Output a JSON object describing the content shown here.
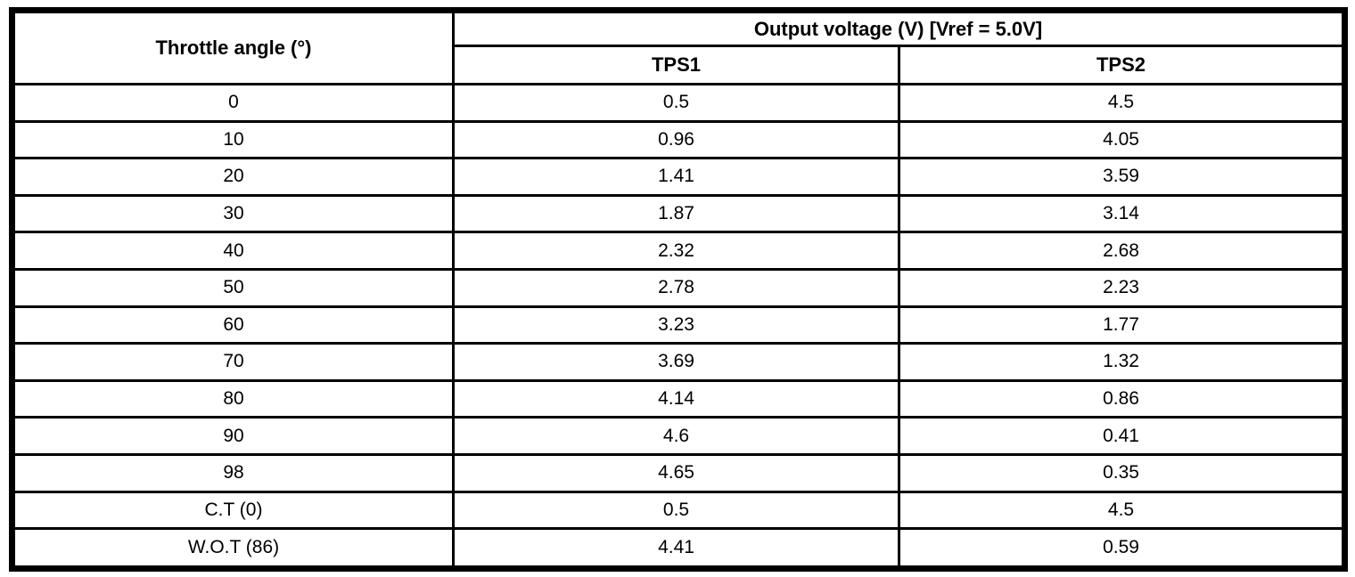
{
  "colors": {
    "background": "#ffffff",
    "border": "#000000",
    "text": "#000000"
  },
  "table": {
    "col1_header": "Throttle angle (°)",
    "group_header": "Output voltage (V) [Vref = 5.0V]",
    "sub_headers": [
      "TPS1",
      "TPS2"
    ],
    "rows": [
      [
        "0",
        "0.5",
        "4.5"
      ],
      [
        "10",
        "0.96",
        "4.05"
      ],
      [
        "20",
        "1.41",
        "3.59"
      ],
      [
        "30",
        "1.87",
        "3.14"
      ],
      [
        "40",
        "2.32",
        "2.68"
      ],
      [
        "50",
        "2.78",
        "2.23"
      ],
      [
        "60",
        "3.23",
        "1.77"
      ],
      [
        "70",
        "3.69",
        "1.32"
      ],
      [
        "80",
        "4.14",
        "0.86"
      ],
      [
        "90",
        "4.6",
        "0.41"
      ],
      [
        "98",
        "4.65",
        "0.35"
      ],
      [
        "C.T (0)",
        "0.5",
        "4.5"
      ],
      [
        "W.O.T (86)",
        "4.41",
        "0.59"
      ]
    ]
  },
  "chart_data": {
    "type": "table",
    "title": "Output voltage (V) [Vref = 5.0V]",
    "xlabel": "Throttle angle (°)",
    "categories": [
      "0",
      "10",
      "20",
      "30",
      "40",
      "50",
      "60",
      "70",
      "80",
      "90",
      "98",
      "C.T (0)",
      "W.O.T (86)"
    ],
    "series": [
      {
        "name": "TPS1",
        "values": [
          0.5,
          0.96,
          1.41,
          1.87,
          2.32,
          2.78,
          3.23,
          3.69,
          4.14,
          4.6,
          4.65,
          0.5,
          4.41
        ]
      },
      {
        "name": "TPS2",
        "values": [
          4.5,
          4.05,
          3.59,
          3.14,
          2.68,
          2.23,
          1.77,
          1.32,
          0.86,
          0.41,
          0.35,
          4.5,
          0.59
        ]
      }
    ]
  }
}
